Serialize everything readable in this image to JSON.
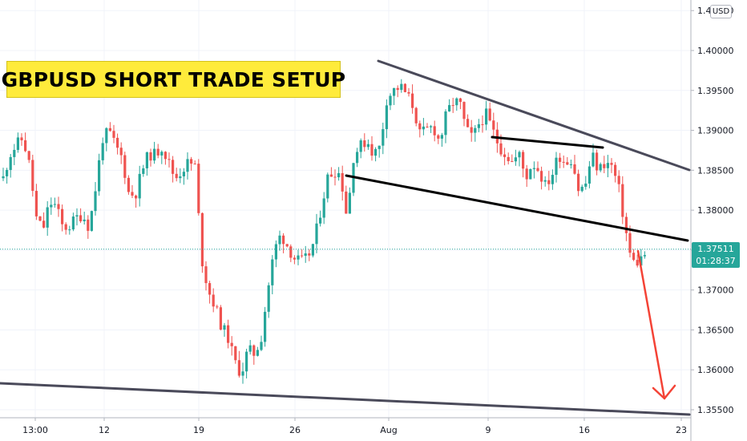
{
  "chart_data": {
    "type": "candlestick",
    "title": "GBPUSD SHORT TRADE SETUP",
    "currency": "USD",
    "last_price": "1.37511",
    "countdown": "01:28:37",
    "ylim": [
      1.3545,
      1.407
    ],
    "y_ticks": [
      "1.35500",
      "1.36000",
      "1.36500",
      "1.37000",
      "1.37500",
      "1.38000",
      "1.38500",
      "1.39000",
      "1.39500",
      "1.40000",
      "1.40500"
    ],
    "x_ticks": [
      "13:00",
      "12",
      "19",
      "26",
      "Aug",
      "9",
      "16",
      "23"
    ],
    "colors": {
      "up": "#26a69a",
      "down": "#ef5350",
      "trendline_major": "#4a4a5a",
      "trendline_minor": "#000000",
      "arrow": "#f44336",
      "title_bg": "#ffeb3b"
    },
    "price_path": [
      1.384,
      1.387,
      1.3882,
      1.389,
      1.3855,
      1.379,
      1.3775,
      1.381,
      1.3805,
      1.3778,
      1.378,
      1.379,
      1.3795,
      1.3778,
      1.383,
      1.389,
      1.3898,
      1.388,
      1.3865,
      1.382,
      1.382,
      1.385,
      1.387,
      1.387,
      1.388,
      1.386,
      1.384,
      1.385,
      1.386,
      1.3855,
      1.374,
      1.37,
      1.368,
      1.3655,
      1.364,
      1.361,
      1.3595,
      1.3625,
      1.362,
      1.364,
      1.37,
      1.375,
      1.377,
      1.3755,
      1.374,
      1.3735,
      1.374,
      1.376,
      1.38,
      1.384,
      1.385,
      1.3845,
      1.379,
      1.387,
      1.388,
      1.3888,
      1.387,
      1.388,
      1.394,
      1.395,
      1.3955,
      1.3945,
      1.393,
      1.3895,
      1.39,
      1.3905,
      1.3885,
      1.392,
      1.3935,
      1.3935,
      1.39,
      1.389,
      1.391,
      1.392,
      1.39,
      1.388,
      1.387,
      1.386,
      1.387,
      1.384,
      1.386,
      1.385,
      1.383,
      1.3845,
      1.387,
      1.386,
      1.3865,
      1.3825,
      1.383,
      1.387,
      1.385,
      1.386,
      1.3855,
      1.383,
      1.378,
      1.3735,
      1.3735,
      1.3745
    ]
  }
}
